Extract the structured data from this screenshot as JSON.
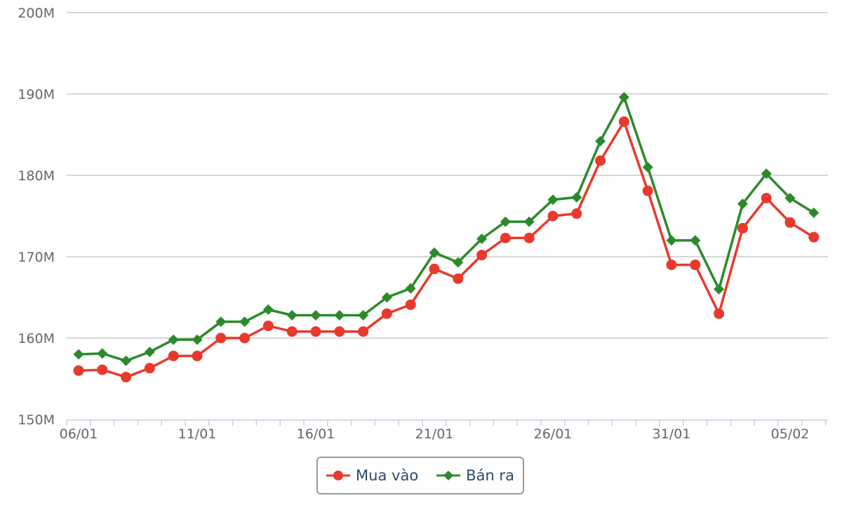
{
  "chart_data": {
    "type": "line",
    "title": "",
    "xlabel": "",
    "ylabel": "",
    "ylim": [
      150,
      200
    ],
    "y_ticks": [
      "150M",
      "160M",
      "170M",
      "180M",
      "190M",
      "200M"
    ],
    "y_tick_values": [
      150,
      160,
      170,
      180,
      190,
      200
    ],
    "x_tick_labels": [
      "06/01",
      "11/01",
      "16/01",
      "21/01",
      "26/01",
      "31/01",
      "05/02"
    ],
    "x_tick_indices": [
      0,
      5,
      10,
      15,
      20,
      25,
      30
    ],
    "categories": [
      "06/01",
      "07/01",
      "08/01",
      "09/01",
      "10/01",
      "11/01",
      "12/01",
      "13/01",
      "14/01",
      "15/01",
      "16/01",
      "17/01",
      "18/01",
      "19/01",
      "20/01",
      "21/01",
      "22/01",
      "23/01",
      "24/01",
      "25/01",
      "26/01",
      "27/01",
      "28/01",
      "29/01",
      "30/01",
      "31/01",
      "01/02",
      "02/02",
      "03/02",
      "04/02",
      "05/02",
      "06/02"
    ],
    "grid": true,
    "legend_position": "bottom-center",
    "series": [
      {
        "name": "Mua vào",
        "color": "#e8392c",
        "marker": "circle",
        "values": [
          156.0,
          156.1,
          155.2,
          156.3,
          157.8,
          157.8,
          160.0,
          160.0,
          161.5,
          160.8,
          160.8,
          160.8,
          160.8,
          163.0,
          164.1,
          168.5,
          167.3,
          170.2,
          172.3,
          172.3,
          175.0,
          175.3,
          181.8,
          186.6,
          178.1,
          169.0,
          169.0,
          163.0,
          173.5,
          177.2,
          174.2,
          172.4
        ]
      },
      {
        "name": "Bán ra",
        "color": "#2a8a2a",
        "marker": "diamond",
        "values": [
          158.0,
          158.1,
          157.2,
          158.3,
          159.8,
          159.8,
          162.0,
          162.0,
          163.5,
          162.8,
          162.8,
          162.8,
          162.8,
          165.0,
          166.1,
          170.5,
          169.3,
          172.2,
          174.3,
          174.3,
          177.0,
          177.3,
          184.2,
          189.6,
          181.0,
          172.0,
          172.0,
          166.0,
          176.5,
          180.2,
          177.2,
          175.4
        ]
      }
    ]
  }
}
